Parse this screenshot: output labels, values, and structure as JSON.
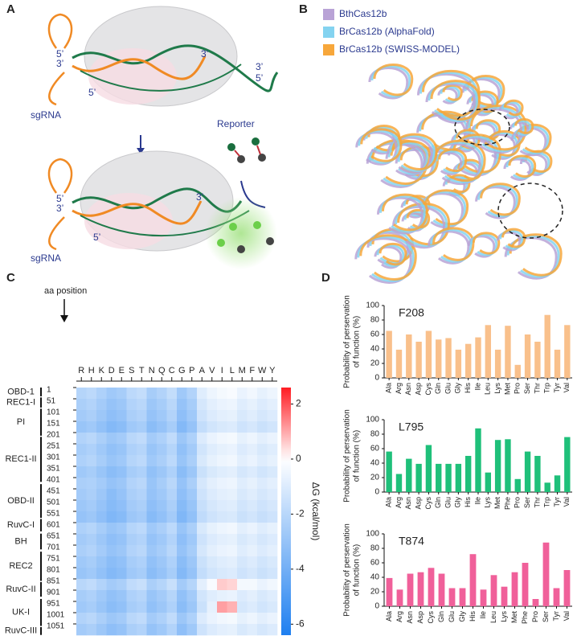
{
  "panel_labels": [
    "A",
    "B",
    "C",
    "D"
  ],
  "panel_a": {
    "top_labels": [
      "5’",
      "3’",
      "3’",
      "3’",
      "5’",
      "5’",
      "sgRNA"
    ],
    "reporter": "Reporter",
    "bottom_labels": [
      "5’",
      "3’",
      "3’",
      "5’",
      "sgRNA"
    ]
  },
  "panel_b": {
    "legend": [
      {
        "name": "BthCas12b",
        "color": "#b9a3d6"
      },
      {
        "name": "BrCas12b (AlphaFold)",
        "color": "#84d3f0"
      },
      {
        "name": "BrCas12b (SWISS-MODEL)",
        "color": "#f7a73b"
      }
    ]
  },
  "chart_data": [
    {
      "type": "heatmap",
      "y_label": "aa position",
      "columns": [
        "R",
        "H",
        "K",
        "D",
        "E",
        "S",
        "T",
        "N",
        "Q",
        "C",
        "G",
        "P",
        "A",
        "V",
        "I",
        "L",
        "M",
        "F",
        "W",
        "Y"
      ],
      "yticks": [
        1,
        51,
        101,
        151,
        201,
        251,
        301,
        351,
        401,
        451,
        501,
        551,
        601,
        651,
        701,
        751,
        801,
        851,
        901,
        951,
        1001,
        1051
      ],
      "ylim": [
        1101,
        1
      ],
      "values": [
        [
          -2.1,
          -1.9,
          -2.3,
          -2.7,
          -2.5,
          -1.9,
          -1.7,
          -2.5,
          -2.2,
          -1.7,
          -2.7,
          -2.2,
          -0.9,
          -0.5,
          -0.3,
          -0.2,
          -0.6,
          -0.4,
          -0.7,
          -0.5
        ],
        [
          -2.4,
          -2.2,
          -2.6,
          -3.0,
          -2.8,
          -2.2,
          -2.0,
          -2.8,
          -2.5,
          -2.0,
          -3.0,
          -2.5,
          -1.2,
          -0.8,
          -0.6,
          -0.5,
          -0.9,
          -0.7,
          -1.0,
          -0.8
        ],
        [
          -2.6,
          -2.4,
          -2.8,
          -3.2,
          -3.0,
          -2.4,
          -2.2,
          -3.0,
          -2.7,
          -2.2,
          -3.2,
          -2.7,
          -1.4,
          -1.0,
          -0.8,
          -0.7,
          -1.1,
          -0.9,
          -1.2,
          -1.0
        ],
        [
          -2.9,
          -2.7,
          -3.1,
          -3.5,
          -3.3,
          -2.7,
          -2.5,
          -3.3,
          -3.0,
          -2.5,
          -3.5,
          -3.0,
          -1.7,
          -1.3,
          -1.1,
          -1.0,
          -1.4,
          -1.2,
          -1.5,
          -1.3
        ],
        [
          -2.2,
          -2.0,
          -2.4,
          -2.8,
          -2.6,
          -2.0,
          -1.8,
          -2.6,
          -2.3,
          -1.8,
          -2.8,
          -2.3,
          -1.0,
          -0.6,
          -0.4,
          -0.3,
          -0.7,
          -0.5,
          -0.8,
          -0.6
        ],
        [
          -2.5,
          -2.3,
          -2.7,
          -3.1,
          -2.9,
          -2.3,
          -2.1,
          -2.9,
          -2.6,
          -2.1,
          -3.1,
          -2.6,
          -1.3,
          -0.9,
          -0.7,
          -0.6,
          -1.0,
          -0.8,
          -1.1,
          -0.9
        ],
        [
          -2.3,
          -2.1,
          -2.5,
          -2.9,
          -2.7,
          -2.1,
          -1.9,
          -2.7,
          -2.4,
          -1.9,
          -2.9,
          -2.4,
          -1.1,
          -0.7,
          -0.5,
          -0.4,
          -0.8,
          -0.6,
          -0.9,
          -0.7
        ],
        [
          -2.7,
          -2.5,
          -2.9,
          -3.3,
          -3.1,
          -2.5,
          -2.3,
          -3.1,
          -2.8,
          -2.3,
          -3.3,
          -2.8,
          -1.5,
          -1.1,
          -0.9,
          -0.8,
          -1.2,
          -1.0,
          -1.3,
          -1.1
        ],
        [
          -2.4,
          -2.3,
          -2.6,
          -3.0,
          -2.8,
          -2.2,
          -2.0,
          -2.9,
          -2.5,
          -2.0,
          -3.0,
          -2.4,
          -1.2,
          -0.8,
          -0.6,
          -0.5,
          -0.9,
          -0.7,
          -1.0,
          -0.8
        ],
        [
          -2.6,
          -2.4,
          -2.8,
          -3.3,
          -3.0,
          -2.4,
          -2.2,
          -3.0,
          -2.7,
          -2.2,
          -3.2,
          -2.7,
          -1.4,
          -1.0,
          -0.8,
          -0.7,
          -1.1,
          -0.9,
          -1.2,
          -1.0
        ],
        [
          -2.8,
          -2.6,
          -3.0,
          -3.4,
          -3.2,
          -2.6,
          -2.4,
          -3.2,
          -2.9,
          -2.4,
          -3.4,
          -2.9,
          -1.6,
          -1.2,
          -1.0,
          -0.9,
          -1.3,
          -1.1,
          -1.4,
          -1.2
        ],
        [
          -3.0,
          -2.8,
          -3.2,
          -3.6,
          -3.4,
          -2.8,
          -2.6,
          -3.4,
          -3.1,
          -2.6,
          -3.6,
          -3.1,
          -1.8,
          -1.4,
          -1.2,
          -1.1,
          -1.5,
          -1.3,
          -1.6,
          -1.4
        ],
        [
          -2.3,
          -2.1,
          -2.5,
          -2.9,
          -2.7,
          -2.1,
          -1.9,
          -2.7,
          -2.4,
          -1.9,
          -2.9,
          -2.4,
          -1.1,
          -0.7,
          -0.5,
          -0.4,
          -0.8,
          -0.6,
          -0.9,
          -0.7
        ],
        [
          -2.6,
          -2.4,
          -2.8,
          -3.2,
          -3.0,
          -2.4,
          -2.2,
          -3.0,
          -2.7,
          -2.2,
          -3.2,
          -2.7,
          -1.4,
          -1.0,
          -0.8,
          -0.7,
          -1.1,
          -0.9,
          -1.2,
          -1.0
        ],
        [
          -2.4,
          -2.2,
          -2.6,
          -3.0,
          -2.8,
          -2.2,
          -2.0,
          -2.8,
          -2.5,
          -2.0,
          -3.0,
          -2.5,
          -1.2,
          -0.8,
          -0.6,
          -0.5,
          -0.9,
          -0.7,
          -1.0,
          -0.8
        ],
        [
          -2.7,
          -2.5,
          -2.9,
          -3.3,
          -3.1,
          -2.5,
          -2.3,
          -3.1,
          -2.8,
          -2.3,
          -3.3,
          -2.8,
          -1.5,
          -1.1,
          -0.9,
          -0.8,
          -1.2,
          -1.0,
          -1.3,
          -1.1
        ],
        [
          -2.9,
          -2.7,
          -3.1,
          -3.5,
          -3.3,
          -2.7,
          -2.5,
          -3.3,
          -3.0,
          -2.5,
          -3.5,
          -3.0,
          -1.7,
          -1.3,
          -1.1,
          -1.0,
          -1.4,
          -1.2,
          -1.5,
          -1.3
        ],
        [
          -2.0,
          -1.8,
          -2.2,
          -2.6,
          -2.4,
          -1.8,
          -1.6,
          -2.4,
          -2.1,
          -1.6,
          -2.6,
          -2.1,
          -0.8,
          -0.2,
          0.6,
          0.5,
          -0.3,
          -0.3,
          -0.6,
          -0.4
        ],
        [
          -2.5,
          -2.3,
          -2.7,
          -3.1,
          -2.9,
          -2.3,
          -2.1,
          -2.9,
          -2.6,
          -2.1,
          -3.1,
          -2.6,
          -1.3,
          -0.9,
          -0.7,
          -0.6,
          -1.0,
          -0.8,
          -1.1,
          -0.9
        ],
        [
          -2.7,
          -2.5,
          -2.9,
          -3.3,
          -3.1,
          -2.5,
          -2.3,
          -3.1,
          -2.8,
          -2.3,
          -3.3,
          -2.8,
          -1.5,
          -0.7,
          1.1,
          0.9,
          -1.2,
          -1.0,
          -1.3,
          -1.1
        ],
        [
          -2.2,
          -2.0,
          -2.4,
          -2.8,
          -2.6,
          -2.0,
          -1.8,
          -2.6,
          -2.3,
          -1.8,
          -2.8,
          -2.3,
          -1.0,
          -0.6,
          -0.4,
          -0.3,
          -0.7,
          -0.5,
          -0.8,
          -0.6
        ],
        [
          -2.6,
          -2.4,
          -2.8,
          -3.2,
          -3.0,
          -2.4,
          -2.2,
          -3.0,
          -2.7,
          -2.2,
          -3.2,
          -2.7,
          -1.4,
          -1.0,
          -0.8,
          -0.7,
          -1.1,
          -0.9,
          -1.2,
          -1.0
        ]
      ],
      "zlim": [
        -6.4,
        2.6
      ],
      "zticks": [
        2,
        0,
        -2,
        -4,
        -6
      ],
      "z_label": "ΔG (kcal/mol)",
      "domains": [
        {
          "name": "OBD-1",
          "start": 1,
          "end": 40
        },
        {
          "name": "REC1-I",
          "start": 45,
          "end": 90
        },
        {
          "name": "PI",
          "start": 95,
          "end": 215
        },
        {
          "name": "REC1-II",
          "start": 220,
          "end": 420
        },
        {
          "name": "OBD-II",
          "start": 430,
          "end": 580
        },
        {
          "name": "RuvC-I",
          "start": 585,
          "end": 640
        },
        {
          "name": "BH",
          "start": 650,
          "end": 720
        },
        {
          "name": "REC2",
          "start": 730,
          "end": 860
        },
        {
          "name": "RuvC-II",
          "start": 865,
          "end": 930
        },
        {
          "name": "UK-I",
          "start": 940,
          "end": 1060
        },
        {
          "name": "RuvC-III",
          "start": 1065,
          "end": 1100
        }
      ]
    },
    {
      "type": "bar",
      "title": "F208",
      "y_label": [
        "Probability of perservation",
        "of function (%)"
      ],
      "categories": [
        "Ala",
        "Arg",
        "Asn",
        "Asp",
        "Cys",
        "Gln",
        "Glu",
        "Gly",
        "His",
        "Ile",
        "Leu",
        "Lys",
        "Met",
        "Pro",
        "Ser",
        "Thr",
        "Trp",
        "Tyr",
        "Val"
      ],
      "values": [
        65,
        39,
        60,
        50,
        65,
        53,
        55,
        39,
        47,
        56,
        73,
        39,
        72,
        18,
        60,
        50,
        87,
        39,
        73
      ],
      "color": "#f9c08b",
      "ylim": [
        0,
        100
      ],
      "yticks": [
        0,
        20,
        40,
        60,
        80,
        100
      ]
    },
    {
      "type": "bar",
      "title": "L795",
      "y_label": [
        "Probability of perservation",
        "of function (%)"
      ],
      "categories": [
        "Ala",
        "Arg",
        "Asn",
        "Asp",
        "Cys",
        "Gln",
        "Glu",
        "Gly",
        "His",
        "Ile",
        "Lys",
        "Met",
        "Phe",
        "Pro",
        "Ser",
        "Thr",
        "Trp",
        "Tyr",
        "Val"
      ],
      "values": [
        56,
        25,
        46,
        39,
        65,
        39,
        39,
        39,
        50,
        88,
        27,
        72,
        73,
        18,
        56,
        50,
        13,
        23,
        76
      ],
      "color": "#1fc07a",
      "ylim": [
        0,
        100
      ],
      "yticks": [
        0,
        20,
        40,
        60,
        80,
        100
      ]
    },
    {
      "type": "bar",
      "title": "T874",
      "y_label": [
        "Probability of perservation",
        "of function (%)"
      ],
      "categories": [
        "Ala",
        "Arg",
        "Asn",
        "Asp",
        "Cys",
        "Gln",
        "Glu",
        "Gly",
        "His",
        "Ile",
        "Leu",
        "Lys",
        "Met",
        "Phe",
        "Pro",
        "Ser",
        "Tyr",
        "Val"
      ],
      "values": [
        39,
        23,
        45,
        47,
        53,
        45,
        25,
        25,
        72,
        23,
        43,
        27,
        47,
        60,
        10,
        88,
        25,
        50
      ],
      "color": "#f0609a",
      "ylim": [
        0,
        100
      ],
      "yticks": [
        0,
        20,
        40,
        60,
        80,
        100
      ]
    }
  ]
}
